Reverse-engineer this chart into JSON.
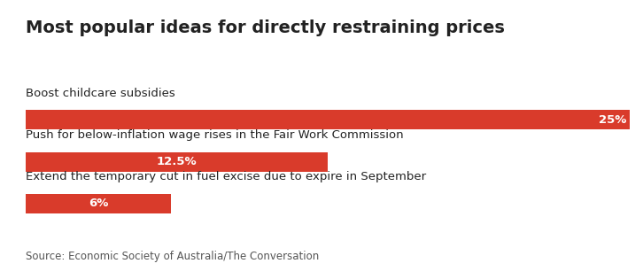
{
  "title": "Most popular ideas for directly restraining prices",
  "categories": [
    "Boost childcare subsidies",
    "Push for below-inflation wage rises in the Fair Work Commission",
    "Extend the temporary cut in fuel excise due to expire in September"
  ],
  "values": [
    25,
    12.5,
    6
  ],
  "labels": [
    "25%",
    "12.5%",
    "6%"
  ],
  "bar_color": "#d93b2b",
  "bg_color": "#ffffff",
  "text_color": "#222222",
  "source_text": "Source: Economic Society of Australia/The Conversation",
  "title_fontsize": 14,
  "cat_fontsize": 9.5,
  "bar_label_fontsize": 9.5,
  "source_fontsize": 8.5,
  "max_value": 25
}
